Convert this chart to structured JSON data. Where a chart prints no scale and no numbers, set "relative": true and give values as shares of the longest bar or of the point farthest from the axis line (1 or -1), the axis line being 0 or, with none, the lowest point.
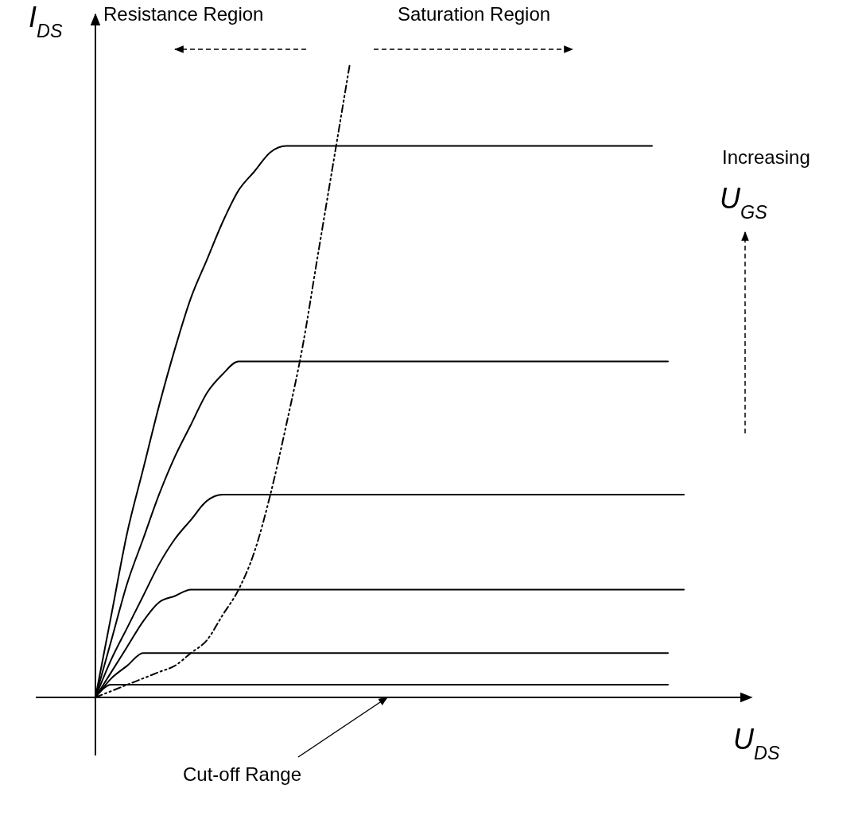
{
  "chart_data": {
    "type": "line",
    "relative": true,
    "xlabel": "U$_{DS}$",
    "ylabel": "I$_{DS}$",
    "annotations": [
      "Resistance Region",
      "Saturation Region",
      "Increasing",
      "U$_{GS}$",
      "Cut-off Range"
    ],
    "categories": [
      null,
      null,
      null,
      null,
      null,
      null,
      null,
      null,
      null,
      null,
      null,
      null,
      null,
      null,
      null,
      null,
      null,
      null,
      null,
      null,
      null,
      null,
      null,
      null,
      null,
      null,
      null,
      null,
      null,
      null,
      null,
      null,
      null,
      null,
      null,
      null,
      null,
      null
    ],
    "series": [
      {
        "color": "#000000",
        "values": [
          0,
          0.13,
          0.26,
          0.36,
          0.46,
          0.55,
          0.63,
          0.69,
          0.75,
          0.8,
          0.83,
          0.86,
          0.87,
          0.87,
          0.87,
          0.87,
          0.87,
          0.87,
          0.87,
          0.87,
          0.87,
          0.87,
          0.87,
          0.87,
          0.87,
          0.87,
          0.87,
          0.87,
          0.87,
          0.87,
          0.87,
          0.87,
          0.87,
          0.87,
          0.87,
          0.87,
          null,
          null
        ]
      },
      {
        "color": "#000000",
        "values": [
          0,
          0.09,
          0.18,
          0.25,
          0.32,
          0.38,
          0.43,
          0.48,
          0.51,
          0.53,
          0.53,
          0.53,
          0.53,
          0.53,
          0.53,
          0.53,
          0.53,
          0.53,
          0.53,
          0.53,
          0.53,
          0.53,
          0.53,
          0.53,
          0.53,
          0.53,
          0.53,
          0.53,
          0.53,
          0.53,
          0.53,
          0.53,
          0.53,
          0.53,
          0.53,
          0.53,
          0.53,
          null
        ]
      },
      {
        "color": "#000000",
        "values": [
          0,
          0.06,
          0.11,
          0.16,
          0.21,
          0.25,
          0.28,
          0.31,
          0.32,
          0.32,
          0.32,
          0.32,
          0.32,
          0.32,
          0.32,
          0.32,
          0.32,
          0.32,
          0.32,
          0.32,
          0.32,
          0.32,
          0.32,
          0.32,
          0.32,
          0.32,
          0.32,
          0.32,
          0.32,
          0.32,
          0.32,
          0.32,
          0.32,
          0.32,
          0.32,
          0.32,
          0.32,
          0.32
        ]
      },
      {
        "color": "#000000",
        "values": [
          0,
          0.04,
          0.08,
          0.12,
          0.15,
          0.16,
          0.17,
          0.17,
          0.17,
          0.17,
          0.17,
          0.17,
          0.17,
          0.17,
          0.17,
          0.17,
          0.17,
          0.17,
          0.17,
          0.17,
          0.17,
          0.17,
          0.17,
          0.17,
          0.17,
          0.17,
          0.17,
          0.17,
          0.17,
          0.17,
          0.17,
          0.17,
          0.17,
          0.17,
          0.17,
          0.17,
          0.17,
          0.17
        ]
      },
      {
        "color": "#000000",
        "values": [
          0,
          0.03,
          0.05,
          0.07,
          0.07,
          0.07,
          0.07,
          0.07,
          0.07,
          0.07,
          0.07,
          0.07,
          0.07,
          0.07,
          0.07,
          0.07,
          0.07,
          0.07,
          0.07,
          0.07,
          0.07,
          0.07,
          0.07,
          0.07,
          0.07,
          0.07,
          0.07,
          0.07,
          0.07,
          0.07,
          0.07,
          0.07,
          0.07,
          0.07,
          0.07,
          0.07,
          0.07,
          null
        ]
      },
      {
        "color": "#000000",
        "values": [
          0,
          0.02,
          0.02,
          0.02,
          0.02,
          0.02,
          0.02,
          0.02,
          0.02,
          0.02,
          0.02,
          0.02,
          0.02,
          0.02,
          0.02,
          0.02,
          0.02,
          0.02,
          0.02,
          0.02,
          0.02,
          0.02,
          0.02,
          0.02,
          0.02,
          0.02,
          0.02,
          0.02,
          0.02,
          0.02,
          0.02,
          0.02,
          0.02,
          0.02,
          0.02,
          0.02,
          0.02,
          null
        ]
      },
      {
        "color": "#000000",
        "line_style": "dashed",
        "values": [
          0,
          0.01,
          0.02,
          0.03,
          0.04,
          0.05,
          0.07,
          0.09,
          0.13,
          0.17,
          0.23,
          0.32,
          0.43,
          0.55,
          0.7,
          0.85,
          1,
          null,
          null,
          null,
          null,
          null,
          null,
          null,
          null,
          null,
          null,
          null,
          null,
          null,
          null,
          null,
          null,
          null,
          null,
          null,
          null,
          null
        ]
      }
    ]
  }
}
